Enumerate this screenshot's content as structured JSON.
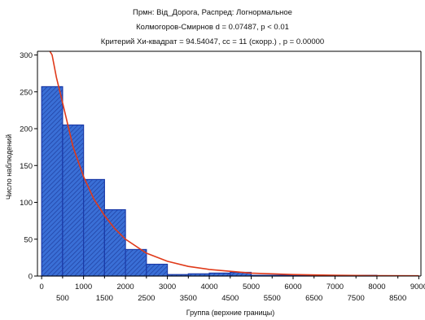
{
  "chart_data": {
    "type": "bar",
    "title_lines": [
      "Прмн: Вiд_Дорога, Распред: Логнормальное",
      "Колмогоров-Смирнов d = 0.07487, p < 0.01",
      "Критерий Хи-квадрат = 94.54047, cc = 11 (скорр.) , p = 0.00000"
    ],
    "xlabel": "Группа (верхние границы)",
    "ylabel": "Число наблюдений",
    "xlim": [
      -100,
      9050
    ],
    "ylim": [
      0,
      305
    ],
    "x_ticks_row1": [
      "0",
      "1000",
      "2000",
      "3000",
      "4000",
      "5000",
      "6000",
      "7000",
      "8000",
      "9000"
    ],
    "x_ticks_row2": [
      "500",
      "1500",
      "2500",
      "3500",
      "4500",
      "5500",
      "6500",
      "7500",
      "8500"
    ],
    "y_ticks": [
      "0",
      "50",
      "100",
      "150",
      "200",
      "250",
      "300"
    ],
    "bin_width": 500,
    "bins": [
      {
        "upper": 500,
        "count": 257
      },
      {
        "upper": 1000,
        "count": 205
      },
      {
        "upper": 1500,
        "count": 131
      },
      {
        "upper": 2000,
        "count": 90
      },
      {
        "upper": 2500,
        "count": 36
      },
      {
        "upper": 3000,
        "count": 16
      },
      {
        "upper": 3500,
        "count": 2
      },
      {
        "upper": 4000,
        "count": 3
      },
      {
        "upper": 4500,
        "count": 4
      },
      {
        "upper": 5000,
        "count": 5
      },
      {
        "upper": 5500,
        "count": 1
      },
      {
        "upper": 6000,
        "count": 1
      },
      {
        "upper": 6500,
        "count": 1
      },
      {
        "upper": 7000,
        "count": 1
      },
      {
        "upper": 7500,
        "count": 1
      },
      {
        "upper": 8000,
        "count": 1
      },
      {
        "upper": 8500,
        "count": 0
      },
      {
        "upper": 9000,
        "count": 0
      }
    ],
    "fit_curve": {
      "distribution": "lognormal",
      "points": [
        [
          60,
          310
        ],
        [
          150,
          330
        ],
        [
          250,
          300
        ],
        [
          350,
          270
        ],
        [
          500,
          235
        ],
        [
          750,
          175
        ],
        [
          1000,
          135
        ],
        [
          1250,
          104
        ],
        [
          1500,
          82
        ],
        [
          1750,
          64
        ],
        [
          2000,
          50
        ],
        [
          2500,
          31
        ],
        [
          3000,
          20
        ],
        [
          3500,
          13
        ],
        [
          4000,
          9
        ],
        [
          5000,
          4
        ],
        [
          6000,
          2
        ],
        [
          7000,
          1
        ],
        [
          8000,
          0.5
        ],
        [
          9000,
          0.3
        ]
      ]
    },
    "colors": {
      "bar_fill": "#3a6fd6",
      "bar_hatch": "#1f3fa0",
      "bar_edge": "#1a3aa8",
      "fit_line": "#e03a1a",
      "axis": "#000000"
    },
    "grid": false
  }
}
